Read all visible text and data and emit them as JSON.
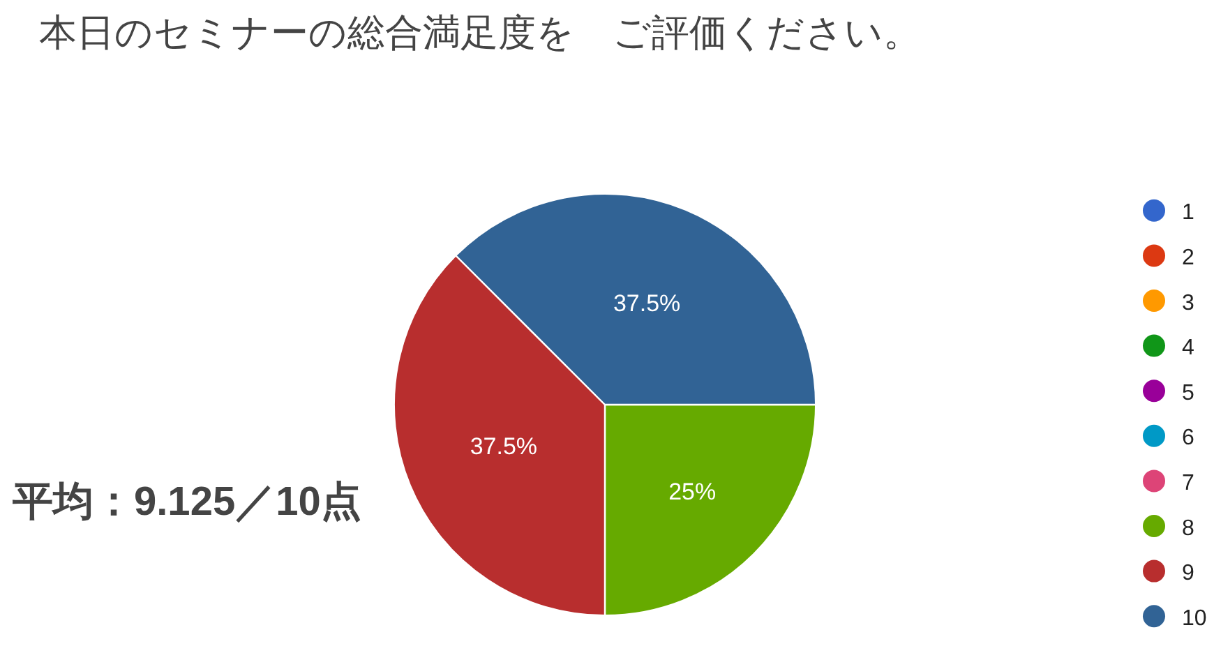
{
  "chart_data": {
    "type": "pie",
    "title": "本日のセミナーの総合満足度を　ご評価ください。",
    "categories": [
      "1",
      "2",
      "3",
      "4",
      "5",
      "6",
      "7",
      "8",
      "9",
      "10"
    ],
    "values": [
      0,
      0,
      0,
      0,
      0,
      0,
      0,
      25,
      37.5,
      37.5
    ],
    "colors": [
      "#3366cc",
      "#dc3912",
      "#ff9900",
      "#109618",
      "#990099",
      "#0099c6",
      "#dd4477",
      "#66aa00",
      "#b82e2e",
      "#316395"
    ],
    "value_labels": [
      null,
      null,
      null,
      null,
      null,
      null,
      null,
      "25%",
      "37.5%",
      "37.5%"
    ],
    "legend": "right",
    "annotations": [
      "平均：9.125／10点"
    ]
  }
}
